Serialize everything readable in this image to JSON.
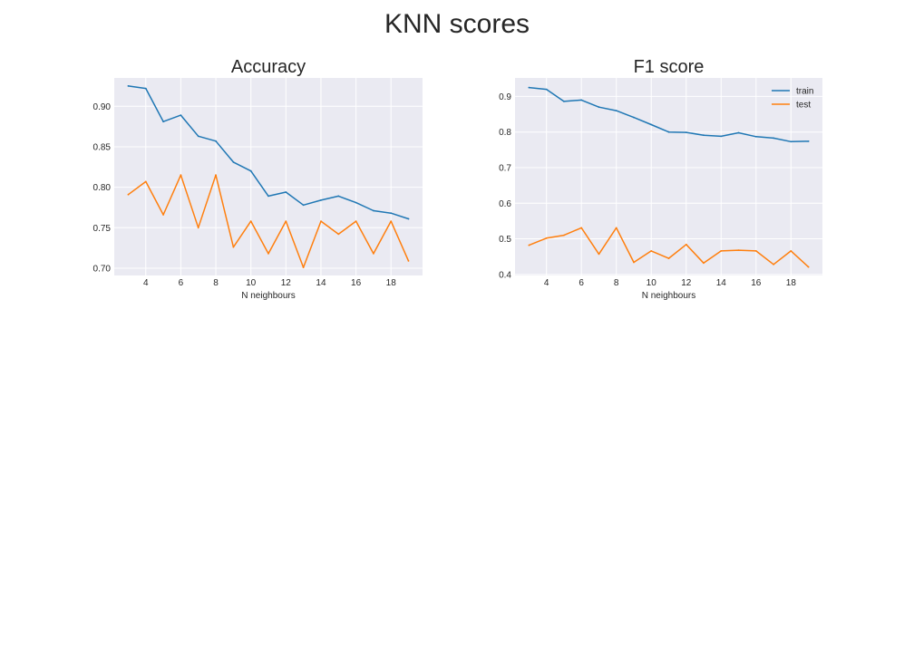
{
  "figure": {
    "title": "KNN scores"
  },
  "colors": {
    "train": "#1f77b4",
    "test": "#ff7f0e",
    "axes_bg": "#eaeaf2",
    "grid": "#ffffff",
    "text": "#262626"
  },
  "chart_data": [
    {
      "type": "line",
      "title": "Accuracy",
      "xlabel": "N neighbours",
      "ylabel": "",
      "xlim": [
        2.2,
        19.8
      ],
      "ylim": [
        0.691,
        0.935
      ],
      "xticks": [
        4,
        6,
        8,
        10,
        12,
        14,
        16,
        18
      ],
      "xtick_labels": [
        "4",
        "6",
        "8",
        "10",
        "12",
        "14",
        "16",
        "18"
      ],
      "yticks": [
        0.7,
        0.75,
        0.8,
        0.85,
        0.9
      ],
      "ytick_labels": [
        "0.70",
        "0.75",
        "0.80",
        "0.85",
        "0.90"
      ],
      "grid": true,
      "x": [
        3,
        4,
        5,
        6,
        7,
        8,
        9,
        10,
        11,
        12,
        13,
        14,
        15,
        16,
        17,
        18,
        19
      ],
      "series": [
        {
          "key": "train",
          "values": [
            0.925,
            0.922,
            0.881,
            0.889,
            0.863,
            0.857,
            0.831,
            0.82,
            0.789,
            0.794,
            0.778,
            0.784,
            0.789,
            0.781,
            0.771,
            0.768,
            0.761
          ]
        },
        {
          "key": "test",
          "values": [
            0.791,
            0.807,
            0.766,
            0.815,
            0.75,
            0.815,
            0.726,
            0.758,
            0.718,
            0.758,
            0.701,
            0.758,
            0.742,
            0.758,
            0.718,
            0.758,
            0.709
          ]
        }
      ]
    },
    {
      "type": "line",
      "title": "F1 score",
      "xlabel": "N neighbours",
      "ylabel": "",
      "xlim": [
        2.2,
        19.8
      ],
      "ylim": [
        0.397,
        0.952
      ],
      "xticks": [
        4,
        6,
        8,
        10,
        12,
        14,
        16,
        18
      ],
      "xtick_labels": [
        "4",
        "6",
        "8",
        "10",
        "12",
        "14",
        "16",
        "18"
      ],
      "yticks": [
        0.4,
        0.5,
        0.6,
        0.7,
        0.8,
        0.9
      ],
      "ytick_labels": [
        "0.4",
        "0.5",
        "0.6",
        "0.7",
        "0.8",
        "0.9"
      ],
      "grid": true,
      "legend": {
        "placement": "top-right",
        "entries": [
          "train",
          "test"
        ]
      },
      "x": [
        3,
        4,
        5,
        6,
        7,
        8,
        9,
        10,
        11,
        12,
        13,
        14,
        15,
        16,
        17,
        18,
        19
      ],
      "series": [
        {
          "key": "train",
          "name": "train",
          "values": [
            0.925,
            0.92,
            0.886,
            0.89,
            0.87,
            0.86,
            0.841,
            0.821,
            0.8,
            0.799,
            0.791,
            0.788,
            0.798,
            0.787,
            0.783,
            0.773,
            0.774
          ]
        },
        {
          "key": "test",
          "name": "test",
          "values": [
            0.482,
            0.502,
            0.51,
            0.531,
            0.457,
            0.531,
            0.434,
            0.466,
            0.445,
            0.484,
            0.432,
            0.466,
            0.468,
            0.466,
            0.428,
            0.466,
            0.421
          ]
        }
      ]
    }
  ]
}
